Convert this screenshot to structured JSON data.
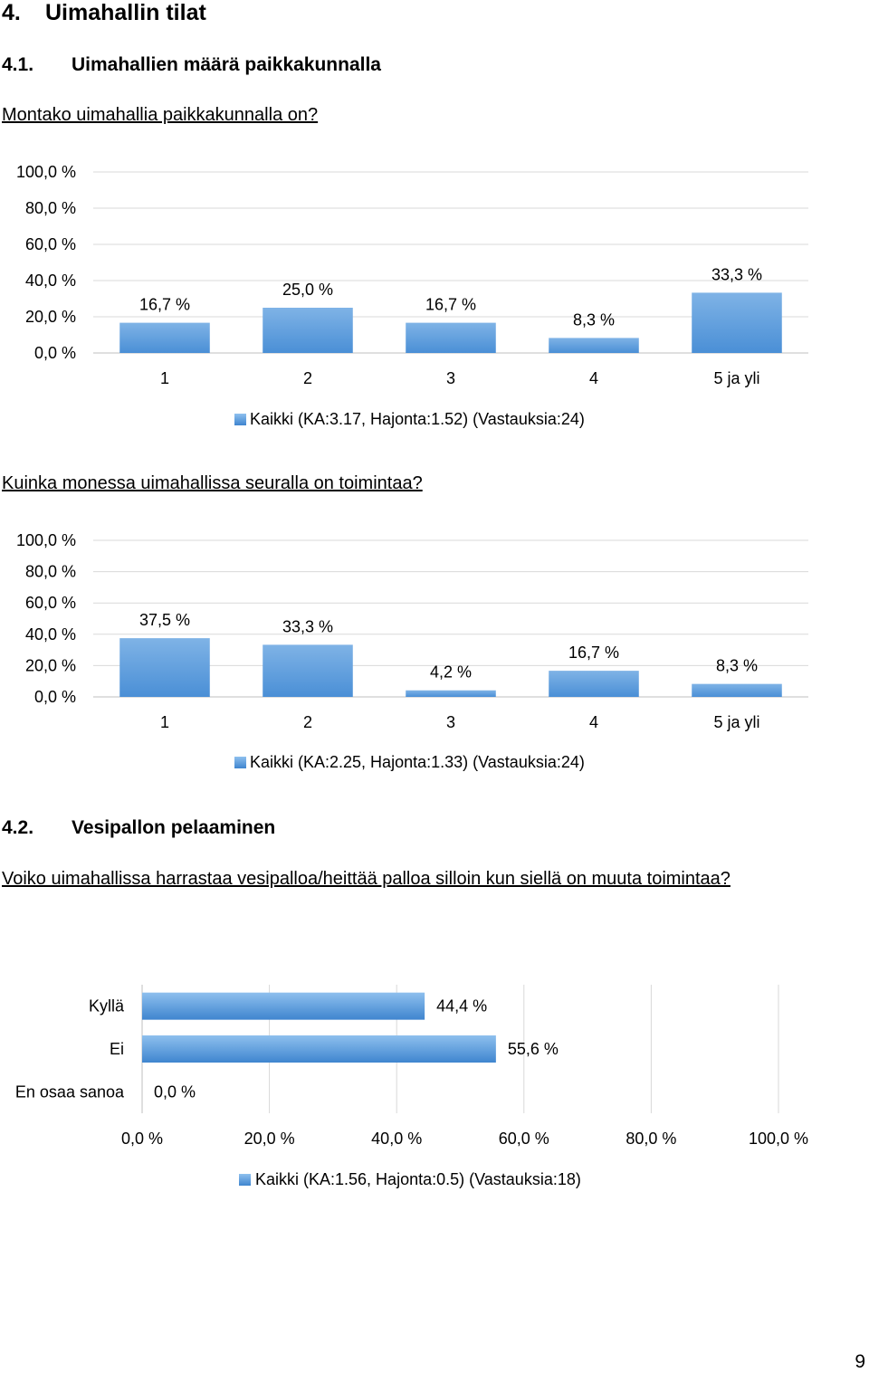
{
  "section": {
    "number": "4.",
    "title": "Uimahallin tilat"
  },
  "subsections": [
    {
      "number": "4.1.",
      "title": "Uimahallien määrä paikkakunnalla"
    },
    {
      "number": "4.2.",
      "title": "Vesipallon pelaaminen"
    }
  ],
  "questions": [
    "Montako uimahallia paikkakunnalla on?",
    "Kuinka monessa uimahallissa seuralla on toimintaa?",
    "Voiko uimahallissa harrastaa vesipalloa/heittää palloa silloin kun siellä on muuta toimintaa?"
  ],
  "page_number": "9",
  "colors": {
    "bar_light": "#82b4e6",
    "bar_dark": "#3f85cf",
    "grid": "#d9d9d9",
    "axis": "#bfbfbf"
  },
  "chart_data": [
    {
      "type": "bar",
      "orientation": "vertical",
      "categories": [
        "1",
        "2",
        "3",
        "4",
        "5 ja yli"
      ],
      "series": [
        {
          "name": "Kaikki (KA:3.17, Hajonta:1.52) (Vastauksia:24)",
          "values": [
            16.7,
            25.0,
            16.7,
            8.3,
            33.3
          ]
        }
      ],
      "value_labels": [
        "16,7 %",
        "25,0 %",
        "16,7 %",
        "8,3 %",
        "33,3 %"
      ],
      "ylim": [
        0,
        100
      ],
      "y_ticks": [
        "0,0 %",
        "20,0 %",
        "40,0 %",
        "60,0 %",
        "80,0 %",
        "100,0 %"
      ],
      "grid": true,
      "legend": "bottom"
    },
    {
      "type": "bar",
      "orientation": "vertical",
      "categories": [
        "1",
        "2",
        "3",
        "4",
        "5 ja yli"
      ],
      "series": [
        {
          "name": "Kaikki (KA:2.25, Hajonta:1.33) (Vastauksia:24)",
          "values": [
            37.5,
            33.3,
            4.2,
            16.7,
            8.3
          ]
        }
      ],
      "value_labels": [
        "37,5 %",
        "33,3 %",
        "4,2 %",
        "16,7 %",
        "8,3 %"
      ],
      "ylim": [
        0,
        100
      ],
      "y_ticks": [
        "0,0 %",
        "20,0 %",
        "40,0 %",
        "60,0 %",
        "80,0 %",
        "100,0 %"
      ],
      "grid": true,
      "legend": "bottom"
    },
    {
      "type": "bar",
      "orientation": "horizontal",
      "categories": [
        "Kyllä",
        "Ei",
        "En osaa sanoa"
      ],
      "series": [
        {
          "name": "Kaikki (KA:1.56, Hajonta:0.5) (Vastauksia:18)",
          "values": [
            44.4,
            55.6,
            0.0
          ]
        }
      ],
      "value_labels": [
        "44,4 %",
        "55,6 %",
        "0,0 %"
      ],
      "xlim": [
        0,
        100
      ],
      "x_ticks": [
        "0,0 %",
        "20,0 %",
        "40,0 %",
        "60,0 %",
        "80,0 %",
        "100,0 %"
      ],
      "grid": true,
      "legend": "bottom"
    }
  ]
}
